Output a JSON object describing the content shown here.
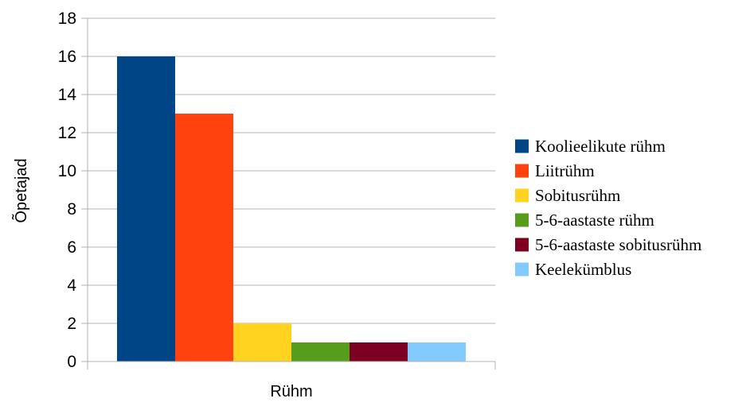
{
  "chart_data": {
    "type": "bar",
    "xlabel": "Rühm",
    "ylabel": "Õpetajad",
    "ylim": [
      0,
      18
    ],
    "yticks": [
      0,
      2,
      4,
      6,
      8,
      10,
      12,
      14,
      16,
      18
    ],
    "grid": true,
    "legend_position": "right",
    "categories": [
      ""
    ],
    "series": [
      {
        "name": "Koolieelikute rühm",
        "values": [
          16
        ],
        "color": "#004586"
      },
      {
        "name": "Liitrühm",
        "values": [
          13
        ],
        "color": "#ff420e"
      },
      {
        "name": "Sobitusrühm",
        "values": [
          2
        ],
        "color": "#ffd320"
      },
      {
        "name": "5-6-aastaste rühm",
        "values": [
          1
        ],
        "color": "#579d1c"
      },
      {
        "name": "5-6-aastaste sobitusrühm",
        "values": [
          1
        ],
        "color": "#7e0021"
      },
      {
        "name": "Keelekümblus",
        "values": [
          1
        ],
        "color": "#83caff"
      }
    ]
  }
}
